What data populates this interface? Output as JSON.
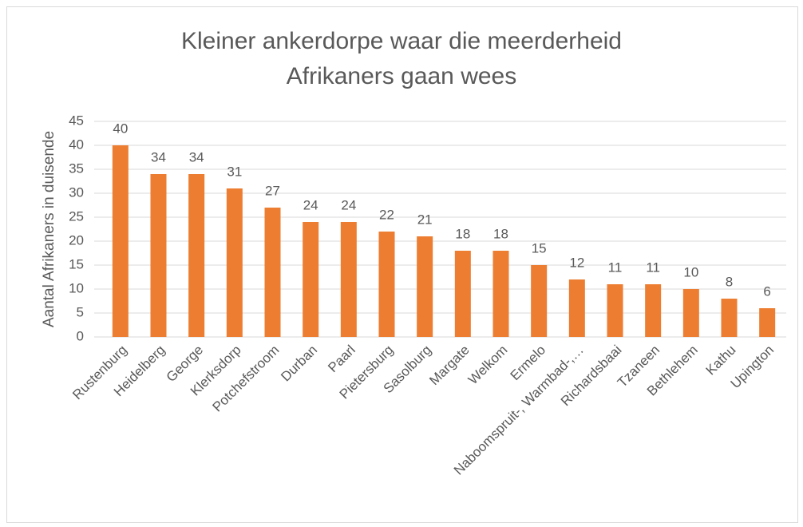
{
  "chart_data": {
    "type": "bar",
    "title": "Kleiner ankerdorpe waar die meerderheid Afrikaners gaan wees",
    "y_label": "Aantal Afrikaners in duisende",
    "categories": [
      "Rustenburg",
      "Heidelberg",
      "George",
      "Klerksdorp",
      "Potchefstroom",
      "Durban",
      "Paarl",
      "Pietersburg",
      "Sasolburg",
      "Margate",
      "Welkom",
      "Ermelo",
      "Naboomspruit-, Warmbad-,…",
      "Richardsbaai",
      "Tzaneen",
      "Bethlehem",
      "Kathu",
      "Upington"
    ],
    "values": [
      40,
      34,
      34,
      31,
      27,
      24,
      24,
      22,
      21,
      18,
      18,
      15,
      12,
      11,
      11,
      10,
      8,
      6
    ],
    "color": "#ed7d31",
    "ylim": [
      0,
      45
    ],
    "yticks": [
      0,
      5,
      10,
      15,
      20,
      25,
      30,
      35,
      40,
      45
    ],
    "grid": true
  }
}
